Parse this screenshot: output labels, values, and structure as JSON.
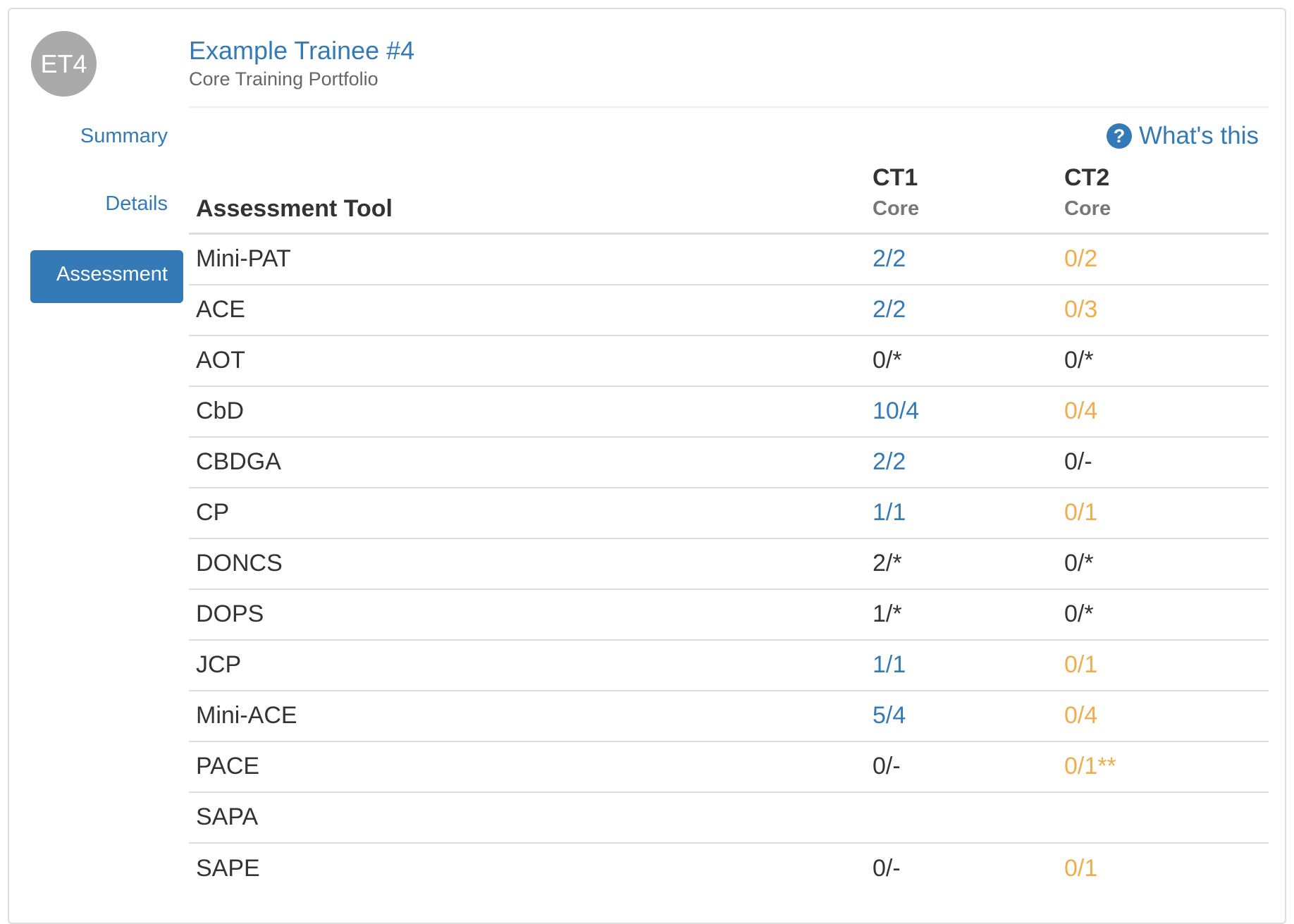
{
  "trainee": {
    "initials": "ET4",
    "name": "Example Trainee #4",
    "portfolio": "Core Training Portfolio"
  },
  "nav": {
    "items": [
      {
        "label": "Summary",
        "active": false
      },
      {
        "label": "Details",
        "active": false
      },
      {
        "label": "Assessment",
        "active": true
      }
    ]
  },
  "help": {
    "icon": "question-circle-icon",
    "label": "What's this"
  },
  "table": {
    "tool_header": "Assessment Tool",
    "columns": [
      {
        "level": "CT1",
        "track": "Core"
      },
      {
        "level": "CT2",
        "track": "Core"
      }
    ],
    "rows": [
      {
        "tool": "Mini-PAT",
        "ct1": "2/2",
        "ct1_status": "blue",
        "ct2": "0/2",
        "ct2_status": "orange"
      },
      {
        "tool": "ACE",
        "ct1": "2/2",
        "ct1_status": "blue",
        "ct2": "0/3",
        "ct2_status": "orange"
      },
      {
        "tool": "AOT",
        "ct1": "0/*",
        "ct1_status": "plain",
        "ct2": "0/*",
        "ct2_status": "plain"
      },
      {
        "tool": "CbD",
        "ct1": "10/4",
        "ct1_status": "blue",
        "ct2": "0/4",
        "ct2_status": "orange"
      },
      {
        "tool": "CBDGA",
        "ct1": "2/2",
        "ct1_status": "blue",
        "ct2": "0/-",
        "ct2_status": "plain"
      },
      {
        "tool": "CP",
        "ct1": "1/1",
        "ct1_status": "blue",
        "ct2": "0/1",
        "ct2_status": "orange"
      },
      {
        "tool": "DONCS",
        "ct1": "2/*",
        "ct1_status": "plain",
        "ct2": "0/*",
        "ct2_status": "plain"
      },
      {
        "tool": "DOPS",
        "ct1": "1/*",
        "ct1_status": "plain",
        "ct2": "0/*",
        "ct2_status": "plain"
      },
      {
        "tool": "JCP",
        "ct1": "1/1",
        "ct1_status": "blue",
        "ct2": "0/1",
        "ct2_status": "orange"
      },
      {
        "tool": "Mini-ACE",
        "ct1": "5/4",
        "ct1_status": "blue",
        "ct2": "0/4",
        "ct2_status": "orange"
      },
      {
        "tool": "PACE",
        "ct1": "0/-",
        "ct1_status": "plain",
        "ct2": "0/1**",
        "ct2_status": "orange"
      },
      {
        "tool": "SAPA",
        "ct1": "",
        "ct1_status": "plain",
        "ct2": "",
        "ct2_status": "plain"
      },
      {
        "tool": "SAPE",
        "ct1": "0/-",
        "ct1_status": "plain",
        "ct2": "0/1",
        "ct2_status": "orange"
      }
    ]
  },
  "colors": {
    "link_blue": "#337ab7",
    "pending_orange": "#f0ad4e",
    "avatar_grey": "#aaaaaa"
  }
}
